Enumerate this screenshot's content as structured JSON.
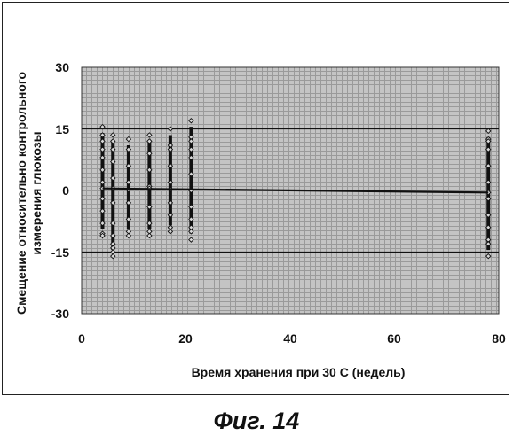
{
  "figure_caption": "Фиг. 14",
  "chart_data": {
    "type": "scatter",
    "title": "",
    "xlabel": "Время хранения при 30 С (недель)",
    "ylabel_lines": [
      "Смещение относительно контрольного",
      "измерения глюкозы"
    ],
    "xlim": [
      0,
      80
    ],
    "ylim": [
      -30,
      30
    ],
    "x_ticks": [
      "0",
      "20",
      "40",
      "60",
      "80"
    ],
    "y_ticks": [
      "30",
      "15",
      "0",
      "-15",
      "-30"
    ],
    "grid": true,
    "legend": "none",
    "reference_lines": [
      {
        "y": 15,
        "style": "solid"
      },
      {
        "y": -15,
        "style": "solid"
      }
    ],
    "trend_line": {
      "x": [
        4,
        78
      ],
      "y": [
        0.5,
        -0.5
      ]
    },
    "series": [
      {
        "x": 4,
        "points": [
          15.5,
          13.5,
          12,
          10,
          8,
          5,
          2,
          -2,
          -5,
          -8,
          -10.5,
          -11,
          0.5
        ]
      },
      {
        "x": 6,
        "points": [
          13.5,
          12,
          10,
          7,
          3,
          -3,
          -8,
          -11,
          -13,
          -14,
          -15,
          -16,
          0.5
        ]
      },
      {
        "x": 9,
        "points": [
          12.5,
          10,
          6,
          2,
          -3,
          -7,
          -10,
          -11,
          0.2
        ]
      },
      {
        "x": 13,
        "points": [
          13.5,
          12,
          9,
          5,
          1,
          -4,
          -8,
          -10,
          -11,
          0.5
        ]
      },
      {
        "x": 17,
        "points": [
          15,
          11,
          10,
          6,
          2,
          -3,
          -6,
          -9,
          -10,
          0.3
        ]
      },
      {
        "x": 21,
        "points": [
          17,
          13,
          12,
          10,
          8,
          4,
          0,
          -4,
          -7,
          -9,
          -10,
          -12,
          0
        ]
      },
      {
        "x": 78,
        "points": [
          14.5,
          12.5,
          12,
          10,
          6,
          2,
          -2,
          -6,
          -9,
          -12,
          -13,
          -16,
          -0.5
        ]
      }
    ]
  }
}
